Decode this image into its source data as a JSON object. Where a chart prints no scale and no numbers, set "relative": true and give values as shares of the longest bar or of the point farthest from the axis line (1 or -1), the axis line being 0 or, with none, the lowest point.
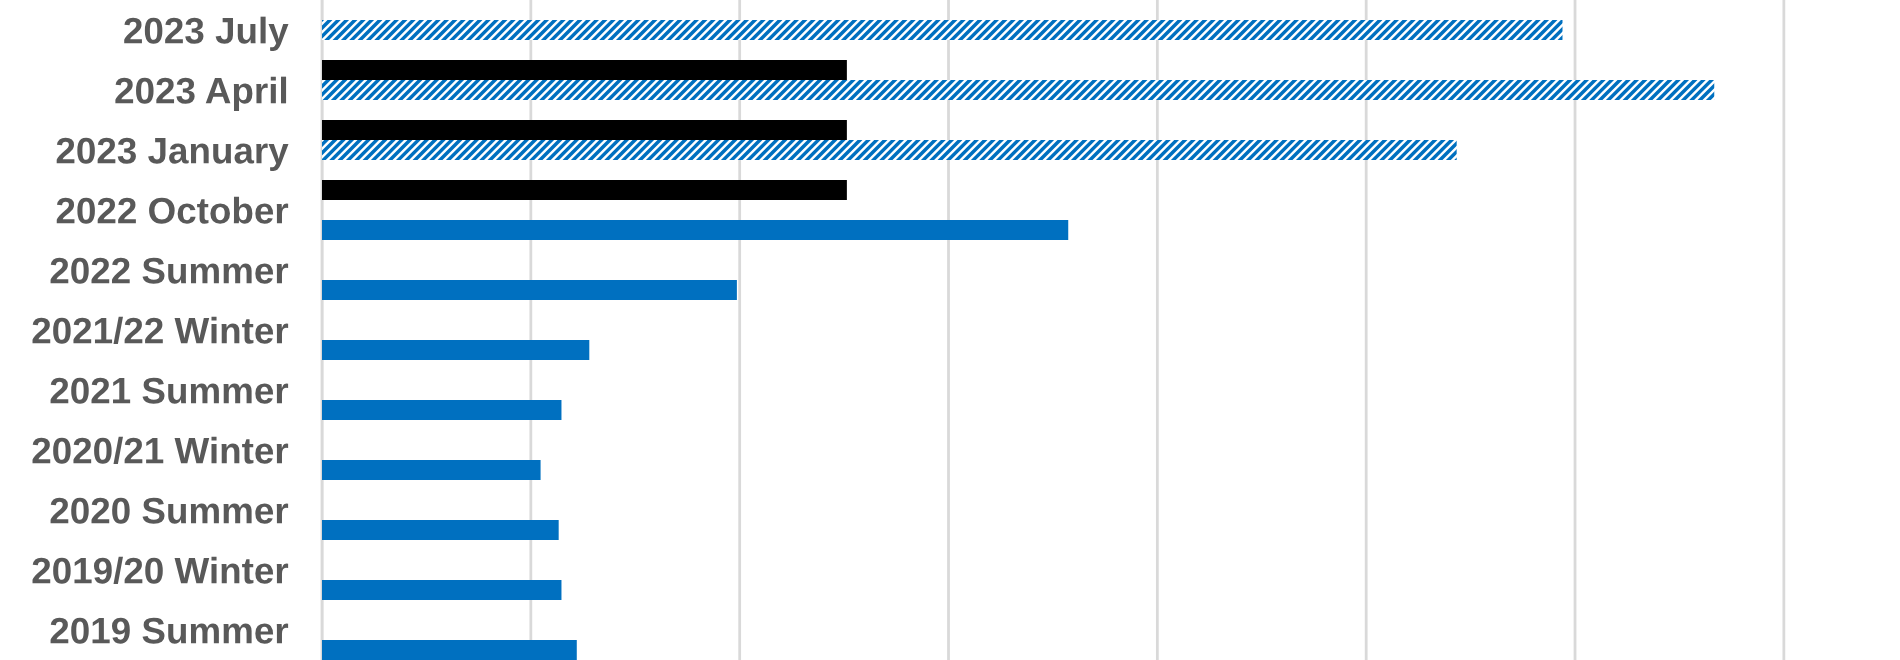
{
  "chart_data": {
    "type": "bar",
    "orientation": "horizontal",
    "relative": true,
    "categories": [
      "2023 July",
      "2023 April",
      "2023 January",
      "2022 October",
      "2022 Summer",
      "2021/22 Winter",
      "2021 Summer",
      "2020/21 Winter",
      "2020 Summer",
      "2019/20 Winter",
      "2019 Summer"
    ],
    "series": [
      {
        "color": "#000000",
        "values": [
          null,
          0.377,
          0.377,
          0.377,
          null,
          null,
          null,
          null,
          null,
          null,
          null
        ]
      },
      {
        "color": "#0070c0",
        "values": [
          0.891,
          1,
          0.815,
          null,
          null,
          null,
          null,
          null,
          null,
          null,
          null
        ]
      },
      {
        "color": "#0070c0",
        "values": [
          null,
          null,
          null,
          0.536,
          0.298,
          0.192,
          0.172,
          0.157,
          0.17,
          0.172,
          0.183
        ]
      }
    ],
    "grid": "x"
  }
}
